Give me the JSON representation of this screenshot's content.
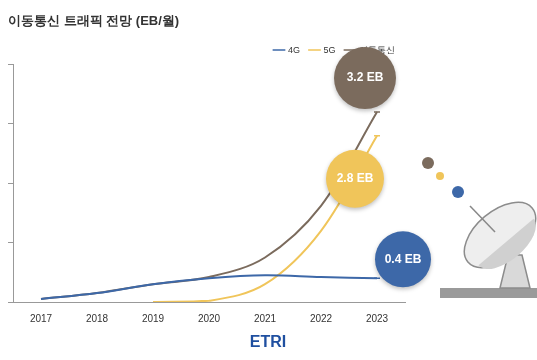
{
  "chart_data": {
    "type": "line",
    "title": "이동통신 트래픽 전망 (EB/월)",
    "categories": [
      "2017",
      "2018",
      "2019",
      "2020",
      "2021",
      "2022",
      "2023"
    ],
    "series": [
      {
        "name": "4G",
        "color": "#3d68a8",
        "values": [
          0.05,
          0.15,
          0.3,
          0.4,
          0.45,
          0.42,
          0.4
        ],
        "value_labels": [
          null,
          null,
          null,
          null,
          null,
          null,
          "0.4 EB"
        ]
      },
      {
        "name": "5G",
        "color": "#f0c55a",
        "values": [
          null,
          null,
          0,
          0.02,
          0.3,
          1.2,
          2.8
        ],
        "value_labels": [
          null,
          null,
          null,
          null,
          null,
          null,
          "2.8 EB"
        ]
      },
      {
        "name": "이동통신",
        "color": "#7b6b5d",
        "values": [
          0.05,
          0.15,
          0.3,
          0.42,
          0.75,
          1.62,
          3.2
        ],
        "value_labels": [
          null,
          null,
          null,
          null,
          null,
          null,
          "3.2 EB"
        ]
      }
    ],
    "ylim": [
      0,
      4
    ],
    "yticks": [
      0,
      1,
      2,
      3,
      4
    ],
    "grid": false,
    "legend": "top-right",
    "tick_labels": "x",
    "data_labels": true,
    "footer": "ETRI"
  }
}
